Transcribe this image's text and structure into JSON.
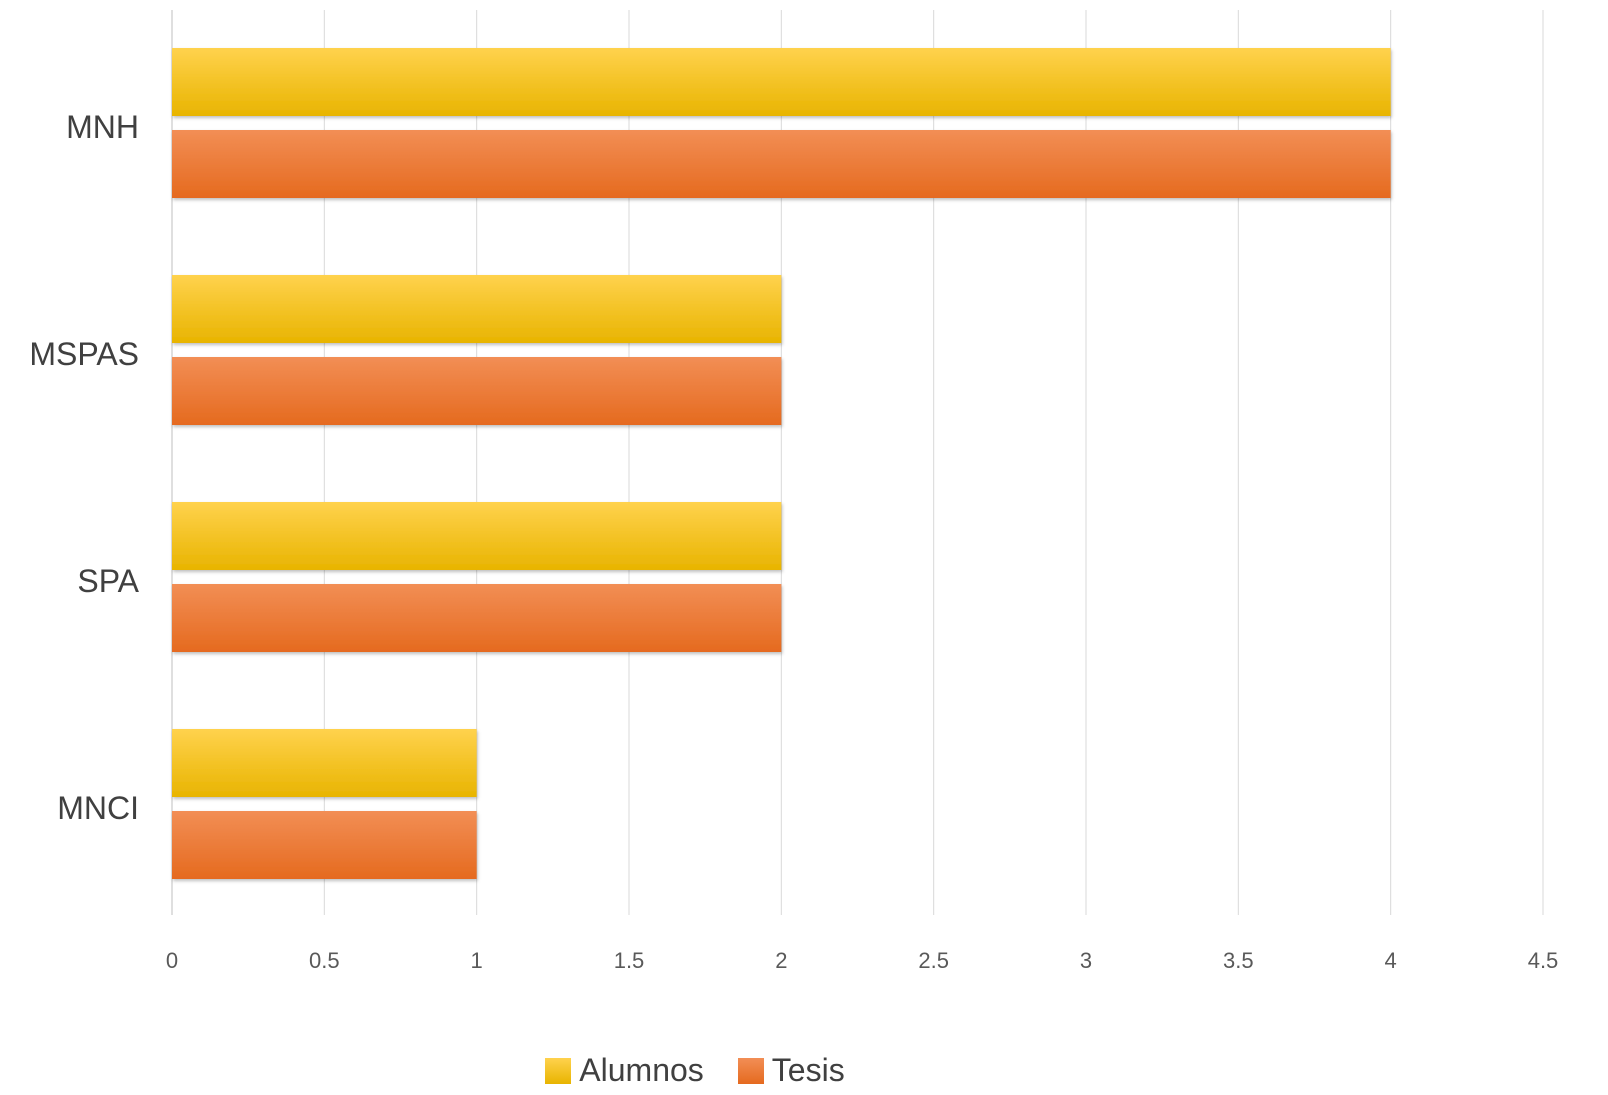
{
  "chart_data": {
    "type": "bar",
    "orientation": "horizontal",
    "categories": [
      "MNH",
      "MSPAS",
      "SPA",
      "MNCI"
    ],
    "series": [
      {
        "name": "Alumnos",
        "values": [
          4,
          2,
          2,
          1
        ],
        "color": "#FFC000"
      },
      {
        "name": "Tesis",
        "values": [
          4,
          2,
          2,
          1
        ],
        "color": "#ED7D31"
      }
    ],
    "xlim": [
      0,
      4.5
    ],
    "xticks": [
      "0",
      "0.5",
      "1",
      "1.5",
      "2",
      "2.5",
      "3",
      "3.5",
      "4",
      "4.5"
    ],
    "title": "",
    "xlabel": "",
    "ylabel": "",
    "grid": "vertical",
    "legend_position": "bottom"
  }
}
